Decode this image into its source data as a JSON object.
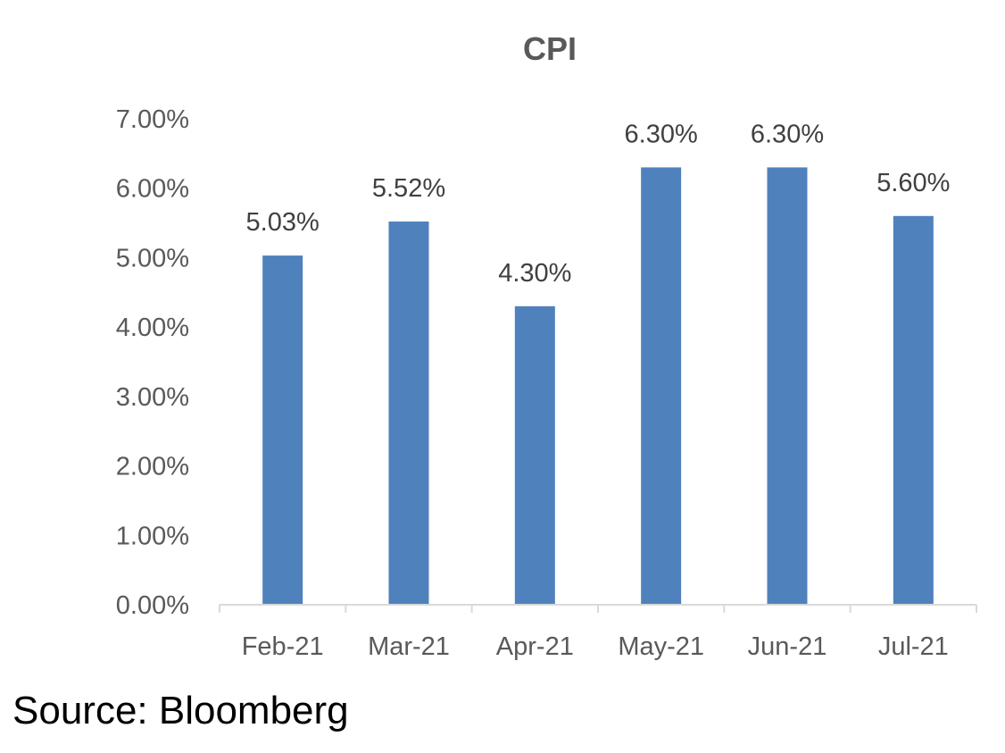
{
  "chart_data": {
    "type": "bar",
    "title": "CPI",
    "categories": [
      "Feb-21",
      "Mar-21",
      "Apr-21",
      "May-21",
      "Jun-21",
      "Jul-21"
    ],
    "series": [
      {
        "values": [
          5.03,
          5.52,
          4.3,
          6.3,
          6.3,
          5.6
        ],
        "data_labels": [
          "5.03%",
          "5.52%",
          "4.30%",
          "6.30%",
          "6.30%",
          "5.60%"
        ]
      }
    ],
    "ylim": [
      0,
      7
    ],
    "y_ticks": [
      0,
      1,
      2,
      3,
      4,
      5,
      6,
      7
    ],
    "y_tick_labels": [
      "0.00%",
      "1.00%",
      "2.00%",
      "3.00%",
      "4.00%",
      "5.00%",
      "6.00%",
      "7.00%"
    ],
    "xlabel": "",
    "ylabel": "",
    "grid": false,
    "legend": "none",
    "colors": {
      "bar": "#4F81BD",
      "axis": "#D9D9D9",
      "tick_text": "#595959",
      "label_text": "#404040"
    }
  },
  "source": "Source: Bloomberg"
}
